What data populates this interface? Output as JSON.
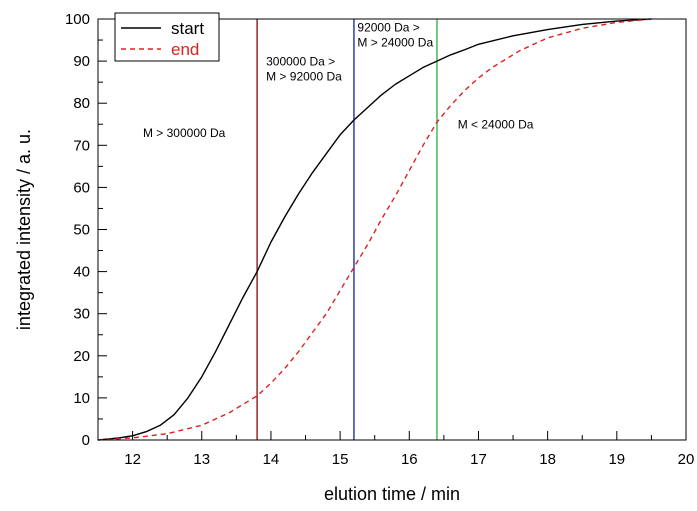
{
  "chart_data": {
    "type": "line",
    "xlabel": "elution time / min",
    "ylabel": "integrated intensity / a. u.",
    "xlim": [
      11.5,
      20
    ],
    "ylim": [
      0,
      100
    ],
    "xticks": [
      12,
      13,
      14,
      15,
      16,
      17,
      18,
      19,
      20
    ],
    "yticks": [
      0,
      10,
      20,
      30,
      40,
      50,
      60,
      70,
      80,
      90,
      100
    ],
    "grid": false,
    "legend_position": "top-left",
    "series": [
      {
        "name": "start",
        "color": "#000000",
        "style": "solid",
        "x": [
          11.5,
          11.8,
          12.0,
          12.2,
          12.4,
          12.6,
          12.8,
          13.0,
          13.2,
          13.4,
          13.6,
          13.8,
          14.0,
          14.2,
          14.4,
          14.6,
          14.8,
          15.0,
          15.2,
          15.4,
          15.6,
          15.8,
          16.0,
          16.2,
          16.4,
          16.6,
          16.8,
          17.0,
          17.5,
          18.0,
          18.5,
          19.0,
          19.5
        ],
        "y": [
          0,
          0.5,
          1,
          2,
          3.5,
          6,
          10,
          15,
          21,
          27.5,
          34,
          40,
          47,
          53,
          58.5,
          63.5,
          68,
          72.5,
          76,
          79,
          82,
          84.5,
          86.5,
          88.5,
          90,
          91.5,
          92.7,
          94,
          96,
          97.5,
          98.7,
          99.5,
          100
        ]
      },
      {
        "name": "end",
        "color": "#e02020",
        "style": "dashed",
        "x": [
          11.5,
          12.0,
          12.5,
          13.0,
          13.2,
          13.4,
          13.6,
          13.8,
          14.0,
          14.2,
          14.4,
          14.6,
          14.8,
          15.0,
          15.2,
          15.4,
          15.6,
          15.8,
          16.0,
          16.2,
          16.4,
          16.6,
          16.8,
          17.0,
          17.2,
          17.4,
          17.6,
          17.8,
          18.0,
          18.5,
          19.0,
          19.5
        ],
        "y": [
          0,
          0.5,
          1.5,
          3.5,
          5,
          6.5,
          8.5,
          10.5,
          13.5,
          17,
          21,
          25.5,
          30,
          35.5,
          41,
          46.5,
          52.5,
          58,
          64,
          70,
          75.5,
          79.5,
          83,
          86,
          88.5,
          90.5,
          92.5,
          94,
          95.5,
          97.8,
          99.2,
          100
        ]
      }
    ],
    "vertical_lines": [
      {
        "x": 13.8,
        "color": "#8b1a1a"
      },
      {
        "x": 15.2,
        "color": "#1f2fa8"
      },
      {
        "x": 16.4,
        "color": "#39b54a"
      }
    ],
    "annotations": [
      {
        "lines": [
          "M > 300000 Da"
        ],
        "x": 12.15,
        "y": 72
      },
      {
        "lines": [
          "300000 Da >",
          "M > 92000 Da"
        ],
        "x": 13.93,
        "y": 89
      },
      {
        "lines": [
          "92000 Da >",
          "M > 24000 Da"
        ],
        "x": 15.25,
        "y": 97
      },
      {
        "lines": [
          "M < 24000 Da"
        ],
        "x": 16.7,
        "y": 74
      }
    ]
  }
}
